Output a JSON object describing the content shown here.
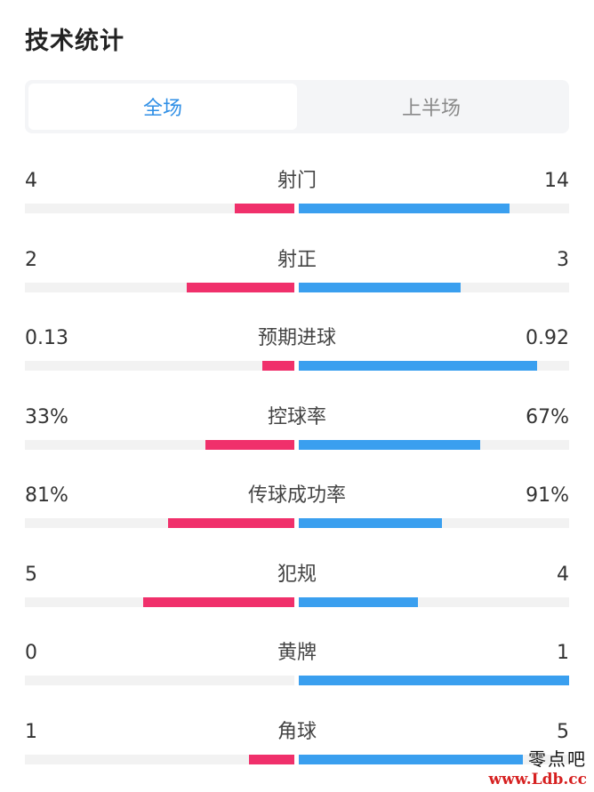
{
  "title": "技术统计",
  "tabs": [
    {
      "label": "全场",
      "active": true
    },
    {
      "label": "上半场",
      "active": false
    }
  ],
  "colors": {
    "home": "#f0306b",
    "away": "#3a9fef",
    "active_tab": "#2f8fe6"
  },
  "stats": [
    {
      "label": "射门",
      "home": "4",
      "away": "14",
      "home_share": 0.22,
      "away_share": 0.78
    },
    {
      "label": "射正",
      "home": "2",
      "away": "3",
      "home_share": 0.4,
      "away_share": 0.6
    },
    {
      "label": "预期进球",
      "home": "0.13",
      "away": "0.92",
      "home_share": 0.12,
      "away_share": 0.88
    },
    {
      "label": "控球率",
      "home": "33%",
      "away": "67%",
      "home_share": 0.33,
      "away_share": 0.67
    },
    {
      "label": "传球成功率",
      "home": "81%",
      "away": "91%",
      "home_share": 0.47,
      "away_share": 0.53
    },
    {
      "label": "犯规",
      "home": "5",
      "away": "4",
      "home_share": 0.56,
      "away_share": 0.44
    },
    {
      "label": "黄牌",
      "home": "0",
      "away": "1",
      "home_share": 0.0,
      "away_share": 1.0
    },
    {
      "label": "角球",
      "home": "1",
      "away": "5",
      "home_share": 0.17,
      "away_share": 0.83
    }
  ],
  "watermark": {
    "text": "零点吧",
    "url": "www.Ldb.cc"
  }
}
